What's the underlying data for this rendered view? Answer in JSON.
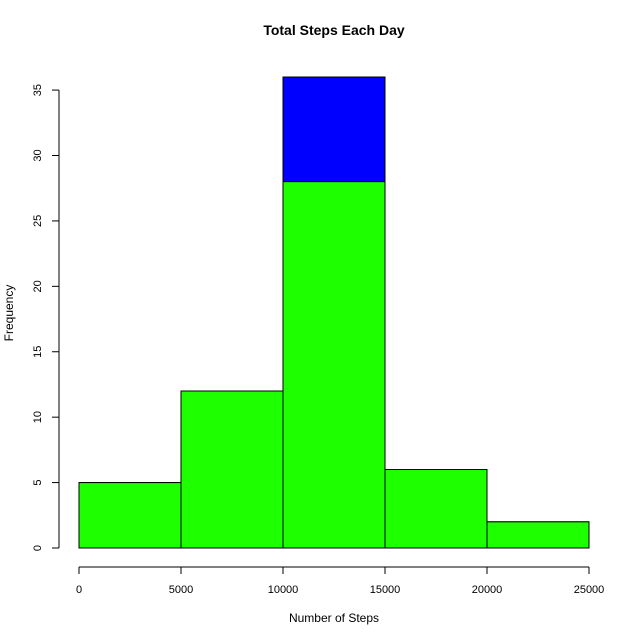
{
  "chart_data": {
    "type": "bar",
    "title": "Total Steps Each Day",
    "xlabel": "Number of Steps",
    "ylabel": "Frequency",
    "bins": [
      {
        "from": 0,
        "to": 5000
      },
      {
        "from": 5000,
        "to": 10000
      },
      {
        "from": 10000,
        "to": 15000
      },
      {
        "from": 15000,
        "to": 20000
      },
      {
        "from": 20000,
        "to": 25000
      }
    ],
    "series": [
      {
        "values": [
          5,
          12,
          36,
          6,
          2
        ],
        "color": "#0000ff"
      },
      {
        "values": [
          5,
          12,
          28,
          6,
          2
        ],
        "color": "#1eff00"
      }
    ],
    "xlim": [
      0,
      25000
    ],
    "ylim": [
      0,
      36
    ],
    "xticks": [
      0,
      5000,
      10000,
      15000,
      20000,
      25000
    ],
    "yticks": [
      0,
      5,
      10,
      15,
      20,
      25,
      30,
      35
    ],
    "grid": false
  }
}
